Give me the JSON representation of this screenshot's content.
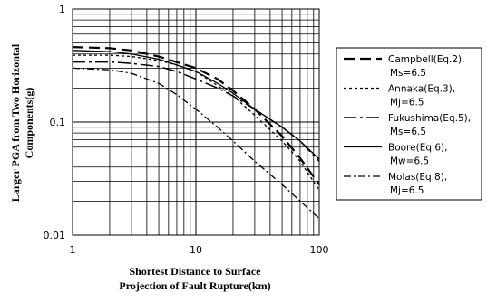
{
  "chart_data": {
    "type": "line",
    "xscale": "log",
    "yscale": "log",
    "xlim": [
      1,
      100
    ],
    "ylim": [
      0.01,
      1
    ],
    "grid": true,
    "legend_position": "right",
    "xlabel_lines": [
      "Shortest Distance to Surface",
      "Projection of Fault Rupture(km)"
    ],
    "ylabel_lines": [
      "Larger PGA from Two Horizontal",
      "Components(g)"
    ],
    "x_ticks": [
      {
        "value": 1,
        "label": "1"
      },
      {
        "value": 10,
        "label": "10"
      },
      {
        "value": 100,
        "label": "100"
      }
    ],
    "y_ticks": [
      {
        "value": 0.01,
        "label": "0.01"
      },
      {
        "value": 0.1,
        "label": "0.1"
      },
      {
        "value": 1,
        "label": "1"
      }
    ],
    "series": [
      {
        "legend_lines": [
          "Campbell(Eq.2),",
          "Ms=6.5"
        ],
        "dash": "12,6",
        "width": 2.2,
        "color": "#000000",
        "points": [
          [
            1,
            0.46
          ],
          [
            2,
            0.45
          ],
          [
            3,
            0.43
          ],
          [
            5,
            0.38
          ],
          [
            10,
            0.3
          ],
          [
            15,
            0.24
          ],
          [
            20,
            0.19
          ],
          [
            30,
            0.13
          ],
          [
            50,
            0.075
          ],
          [
            70,
            0.048
          ],
          [
            100,
            0.028
          ]
        ]
      },
      {
        "legend_lines": [
          "Annaka(Eq.3),",
          "Mj=6.5"
        ],
        "dash": "3,3",
        "width": 1.3,
        "color": "#000000",
        "points": [
          [
            1,
            0.39
          ],
          [
            2,
            0.39
          ],
          [
            3,
            0.38
          ],
          [
            5,
            0.35
          ],
          [
            7,
            0.32
          ],
          [
            10,
            0.28
          ],
          [
            15,
            0.21
          ],
          [
            20,
            0.17
          ],
          [
            30,
            0.115
          ],
          [
            50,
            0.068
          ],
          [
            70,
            0.045
          ],
          [
            100,
            0.025
          ]
        ]
      },
      {
        "legend_lines": [
          "Fukushima(Eq.5),",
          "Ms=6.5"
        ],
        "dash": "14,4,3,4",
        "width": 1.5,
        "color": "#000000",
        "points": [
          [
            1,
            0.34
          ],
          [
            2,
            0.34
          ],
          [
            3,
            0.33
          ],
          [
            5,
            0.31
          ],
          [
            7,
            0.28
          ],
          [
            10,
            0.24
          ],
          [
            15,
            0.2
          ],
          [
            20,
            0.17
          ],
          [
            30,
            0.13
          ],
          [
            50,
            0.09
          ],
          [
            70,
            0.068
          ],
          [
            100,
            0.045
          ]
        ]
      },
      {
        "legend_lines": [
          "Boore(Eq.6),",
          "Mw=6.5"
        ],
        "dash": "",
        "width": 1.3,
        "color": "#000000",
        "points": [
          [
            1,
            0.43
          ],
          [
            2,
            0.42
          ],
          [
            3,
            0.4
          ],
          [
            5,
            0.36
          ],
          [
            7,
            0.32
          ],
          [
            10,
            0.28
          ],
          [
            15,
            0.22
          ],
          [
            20,
            0.18
          ],
          [
            30,
            0.13
          ],
          [
            50,
            0.09
          ],
          [
            70,
            0.068
          ],
          [
            100,
            0.047
          ]
        ]
      },
      {
        "legend_lines": [
          "Molas(Eq.8),",
          "Mj=6.5"
        ],
        "dash": "8,3,2,3",
        "width": 1.3,
        "color": "#000000",
        "points": [
          [
            1,
            0.3
          ],
          [
            2,
            0.29
          ],
          [
            3,
            0.27
          ],
          [
            5,
            0.22
          ],
          [
            7,
            0.175
          ],
          [
            10,
            0.13
          ],
          [
            15,
            0.09
          ],
          [
            20,
            0.068
          ],
          [
            30,
            0.045
          ],
          [
            50,
            0.028
          ],
          [
            70,
            0.02
          ],
          [
            100,
            0.014
          ]
        ]
      }
    ]
  }
}
